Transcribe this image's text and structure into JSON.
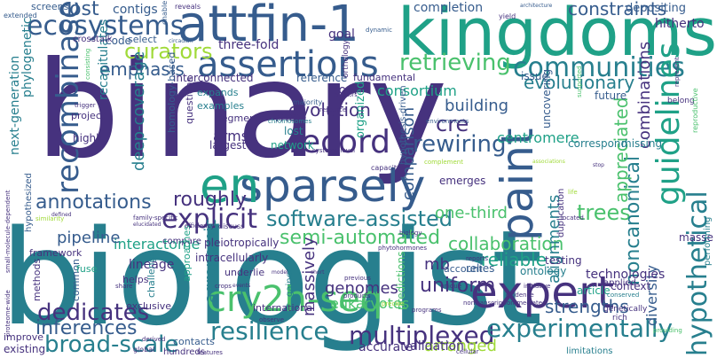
{
  "palette": {
    "purple": "#46327e",
    "blue": "#365c8d",
    "teal": "#277f8e",
    "green": "#1fa187",
    "lime": "#4ac16d",
    "yellow": "#a0da39"
  },
  "words": [
    {
      "text": "binary",
      "color": "#46327e"
    },
    {
      "text": "biologist",
      "color": "#277f8e"
    },
    {
      "text": "kingdoms",
      "color": "#1fa187"
    },
    {
      "text": "attfin-1",
      "color": "#365c8d"
    },
    {
      "text": "sparsely",
      "color": "#365c8d"
    },
    {
      "text": "expert",
      "color": "#46327e"
    },
    {
      "text": "cry2h-seq",
      "color": "#4ac16d"
    },
    {
      "text": "paint",
      "color": "#365c8d"
    },
    {
      "text": "en",
      "color": "#1fa187"
    },
    {
      "text": "assertions",
      "color": "#365c8d"
    },
    {
      "text": "record",
      "color": "#46327e"
    },
    {
      "text": "ecosystems",
      "color": "#365c8d"
    },
    {
      "text": "communities",
      "color": "#277f8e"
    },
    {
      "text": "guidelines",
      "color": "#1fa187"
    },
    {
      "text": "recombinase",
      "color": "#365c8d"
    },
    {
      "text": "explicit",
      "color": "#46327e"
    },
    {
      "text": "resilience",
      "color": "#277f8e"
    },
    {
      "text": "broad-scale",
      "color": "#277f8e"
    },
    {
      "text": "dedicates",
      "color": "#46327e"
    },
    {
      "text": "multiplexed",
      "color": "#46327e"
    },
    {
      "text": "experimentally",
      "color": "#277f8e"
    },
    {
      "text": "hypothetical",
      "color": "#277f8e"
    },
    {
      "text": "retrieving",
      "color": "#4ac16d"
    },
    {
      "text": "curators",
      "color": "#a0da39"
    },
    {
      "text": "rewiring",
      "color": "#365c8d"
    },
    {
      "text": "software-assisted",
      "color": "#277f8e"
    },
    {
      "text": "annotations",
      "color": "#365c8d"
    },
    {
      "text": "inferences",
      "color": "#365c8d"
    },
    {
      "text": "trees",
      "color": "#4ac16d"
    },
    {
      "text": "semi-automated",
      "color": "#4ac16d"
    },
    {
      "text": "roughly",
      "color": "#46327e"
    },
    {
      "text": "uniform",
      "color": "#46327e"
    },
    {
      "text": "evolutionary",
      "color": "#277f8e"
    },
    {
      "text": "noncanonical",
      "color": "#277f8e"
    },
    {
      "text": "strengths",
      "color": "#365c8d"
    },
    {
      "text": "collaboration",
      "color": "#4ac16d"
    },
    {
      "text": "reliable",
      "color": "#1fa187"
    },
    {
      "text": "emphasis",
      "color": "#365c8d"
    },
    {
      "text": "appreciated",
      "color": "#4ac16d"
    },
    {
      "text": "evolution",
      "color": "#46327e"
    },
    {
      "text": "cost",
      "color": "#365c8d"
    },
    {
      "text": "cre",
      "color": "#46327e"
    },
    {
      "text": "consortium",
      "color": "#1fa187"
    },
    {
      "text": "constraints",
      "color": "#365c8d"
    },
    {
      "text": "combinations",
      "color": "#46327e"
    },
    {
      "text": "one-third",
      "color": "#4ac16d"
    },
    {
      "text": "genomes",
      "color": "#46327e"
    },
    {
      "text": "eukaryotes",
      "color": "#4ac16d"
    },
    {
      "text": "arranged",
      "color": "#a0da39"
    },
    {
      "text": "interactome",
      "color": "#1fa187"
    },
    {
      "text": "pipeline",
      "color": "#365c8d"
    },
    {
      "text": "deep-coverage",
      "color": "#277f8e"
    },
    {
      "text": "agronomic",
      "color": "#277f8e"
    },
    {
      "text": "massively",
      "color": "#46327e"
    },
    {
      "text": "mb",
      "color": "#46327e"
    },
    {
      "text": "alignments",
      "color": "#277f8e"
    },
    {
      "text": "building",
      "color": "#365c8d"
    },
    {
      "text": "comparison",
      "color": "#365c8d"
    },
    {
      "text": "centromere",
      "color": "#1fa187"
    },
    {
      "text": "diversity",
      "color": "#365c8d"
    },
    {
      "text": "arms",
      "color": "#46327e"
    },
    {
      "text": "map",
      "color": "#46327e"
    },
    {
      "text": "lineage",
      "color": "#46327e"
    },
    {
      "text": "technologies",
      "color": "#46327e"
    },
    {
      "text": "validation",
      "color": "#46327e"
    },
    {
      "text": "accurate",
      "color": "#46327e"
    },
    {
      "text": "next-generation",
      "color": "#277f8e"
    },
    {
      "text": "phylogenetic",
      "color": "#277f8e"
    },
    {
      "text": "three-fold",
      "color": "#46327e"
    },
    {
      "text": "goal",
      "color": "#46327e"
    },
    {
      "text": "tool",
      "color": "#46327e"
    },
    {
      "text": "recapitulates",
      "color": "#277f8e"
    },
    {
      "text": "reference",
      "color": "#365c8d"
    },
    {
      "text": "interconnected",
      "color": "#46327e"
    },
    {
      "text": "code",
      "color": "#365c8d"
    },
    {
      "text": "select",
      "color": "#365c8d"
    },
    {
      "text": "contigs",
      "color": "#365c8d"
    },
    {
      "text": "screens",
      "color": "#365c8d"
    },
    {
      "text": "crosstalk",
      "color": "#46327e"
    },
    {
      "text": "completion",
      "color": "#365c8d"
    },
    {
      "text": "hitherto",
      "color": "#46327e"
    },
    {
      "text": "depositing",
      "color": "#365c8d"
    },
    {
      "text": "fundamental",
      "color": "#46327e"
    },
    {
      "text": "issue",
      "color": "#365c8d"
    },
    {
      "text": "future",
      "color": "#365c8d"
    },
    {
      "text": "uncovering",
      "color": "#365c8d"
    },
    {
      "text": "correspond",
      "color": "#277f8e"
    },
    {
      "text": "missing",
      "color": "#277f8e"
    },
    {
      "text": "masse",
      "color": "#46327e"
    },
    {
      "text": "testing",
      "color": "#46327e"
    },
    {
      "text": "relies",
      "color": "#365c8d"
    },
    {
      "text": "ontology",
      "color": "#277f8e"
    },
    {
      "text": "account",
      "color": "#365c8d"
    },
    {
      "text": "article",
      "color": "#1fa187"
    },
    {
      "text": "context",
      "color": "#46327e"
    },
    {
      "text": "emerges",
      "color": "#46327e"
    },
    {
      "text": "organized",
      "color": "#1fa187"
    },
    {
      "text": "lost",
      "color": "#277f8e"
    },
    {
      "text": "network",
      "color": "#1fa187"
    },
    {
      "text": "largest",
      "color": "#46327e"
    },
    {
      "text": "highly",
      "color": "#46327e"
    },
    {
      "text": "segments",
      "color": "#46327e"
    },
    {
      "text": "examples",
      "color": "#277f8e"
    },
    {
      "text": "expands",
      "color": "#277f8e"
    },
    {
      "text": "questions",
      "color": "#46327e"
    },
    {
      "text": "homology-based",
      "color": "#365c8d"
    },
    {
      "text": "project",
      "color": "#46327e"
    },
    {
      "text": "pleiotropically",
      "color": "#46327e"
    },
    {
      "text": "intracellularly",
      "color": "#46327e"
    },
    {
      "text": "hypothesized",
      "color": "#365c8d"
    },
    {
      "text": "framework",
      "color": "#46327e"
    },
    {
      "text": "compare",
      "color": "#46327e"
    },
    {
      "text": "methods",
      "color": "#46327e"
    },
    {
      "text": "common",
      "color": "#365c8d"
    },
    {
      "text": "fuse",
      "color": "#1fa187"
    },
    {
      "text": "helps",
      "color": "#46327e"
    },
    {
      "text": "challenge",
      "color": "#277f8e"
    },
    {
      "text": "approaches",
      "color": "#1fa187"
    },
    {
      "text": "underlie",
      "color": "#46327e"
    },
    {
      "text": "gained",
      "color": "#277f8e"
    },
    {
      "text": "exclusive",
      "color": "#46327e"
    },
    {
      "text": "international",
      "color": "#46327e"
    },
    {
      "text": "predictions",
      "color": "#4ac16d"
    },
    {
      "text": "contacts",
      "color": "#365c8d"
    },
    {
      "text": "hundreds",
      "color": "#46327e"
    },
    {
      "text": "existing",
      "color": "#46327e"
    },
    {
      "text": "improve",
      "color": "#46327e"
    },
    {
      "text": "sequences",
      "color": "#277f8e"
    },
    {
      "text": "limitations",
      "color": "#277f8e"
    },
    {
      "text": "applied",
      "color": "#46327e"
    },
    {
      "text": "genetically",
      "color": "#46327e"
    },
    {
      "text": "rich",
      "color": "#46327e"
    },
    {
      "text": "duplication",
      "color": "#46327e"
    },
    {
      "text": "hypothesis-driven",
      "color": "#365c8d"
    },
    {
      "text": "belong",
      "color": "#46327e"
    },
    {
      "text": "reproductive",
      "color": "#4ac16d"
    },
    {
      "text": "performing",
      "color": "#277f8e"
    },
    {
      "text": "majority",
      "color": "#365c8d"
    },
    {
      "text": "orthology",
      "color": "#46327e"
    },
    {
      "text": "chromosomes",
      "color": "#277f8e"
    },
    {
      "text": "systems-level",
      "color": "#46327e"
    },
    {
      "text": "capacity",
      "color": "#46327e"
    },
    {
      "text": "resource",
      "color": "#46327e"
    },
    {
      "text": "previous",
      "color": "#46327e"
    },
    {
      "text": "products",
      "color": "#46327e"
    },
    {
      "text": "environments",
      "color": "#365c8d"
    },
    {
      "text": "phytohormones",
      "color": "#46327e"
    },
    {
      "text": "crops",
      "color": "#46327e"
    },
    {
      "text": "global",
      "color": "#46327e"
    },
    {
      "text": "nontranscription-mediated",
      "color": "#46327e"
    },
    {
      "text": "cellular",
      "color": "#46327e"
    },
    {
      "text": "programs",
      "color": "#46327e"
    },
    {
      "text": "derived",
      "color": "#46327e"
    },
    {
      "text": "observe",
      "color": "#46327e"
    },
    {
      "text": "proteome-wide",
      "color": "#46327e"
    },
    {
      "text": "small-molecule-dependent",
      "color": "#46327e"
    },
    {
      "text": "extended",
      "color": "#365c8d"
    },
    {
      "text": "family-specific",
      "color": "#46327e"
    },
    {
      "text": "efficiency",
      "color": "#46327e"
    },
    {
      "text": "discuss",
      "color": "#46327e"
    },
    {
      "text": "elucidated",
      "color": "#46327e"
    },
    {
      "text": "biology",
      "color": "#46327e"
    },
    {
      "text": "reports",
      "color": "#46327e"
    },
    {
      "text": "unique",
      "color": "#46327e"
    },
    {
      "text": "evidence",
      "color": "#46327e"
    },
    {
      "text": "initiative",
      "color": "#46327e"
    },
    {
      "text": "conserved",
      "color": "#277f8e"
    },
    {
      "text": "providing",
      "color": "#4ac16d"
    },
    {
      "text": "dynamic",
      "color": "#365c8d"
    },
    {
      "text": "enable",
      "color": "#365c8d"
    },
    {
      "text": "reveals",
      "color": "#46327e"
    },
    {
      "text": "yield",
      "color": "#46327e"
    },
    {
      "text": "architecture",
      "color": "#365c8d"
    },
    {
      "text": "circadian",
      "color": "#365c8d"
    },
    {
      "text": "trigger",
      "color": "#46327e"
    },
    {
      "text": "defined",
      "color": "#46327e"
    },
    {
      "text": "similarity",
      "color": "#a0da39"
    },
    {
      "text": "receptors",
      "color": "#46327e"
    },
    {
      "text": "represent",
      "color": "#46327e"
    },
    {
      "text": "supported",
      "color": "#4ac16d"
    },
    {
      "text": "consisting",
      "color": "#4ac16d"
    },
    {
      "text": "complement",
      "color": "#a0da39"
    },
    {
      "text": "share",
      "color": "#46327e"
    },
    {
      "text": "events",
      "color": "#46327e"
    },
    {
      "text": "model",
      "color": "#46327e"
    },
    {
      "text": "short",
      "color": "#46327e"
    },
    {
      "text": "precise",
      "color": "#a0da39"
    },
    {
      "text": "located",
      "color": "#46327e"
    },
    {
      "text": "stop",
      "color": "#46327e"
    },
    {
      "text": "associations",
      "color": "#a0da39"
    },
    {
      "text": "features",
      "color": "#46327e"
    },
    {
      "text": "life",
      "color": "#a0da39"
    }
  ]
}
